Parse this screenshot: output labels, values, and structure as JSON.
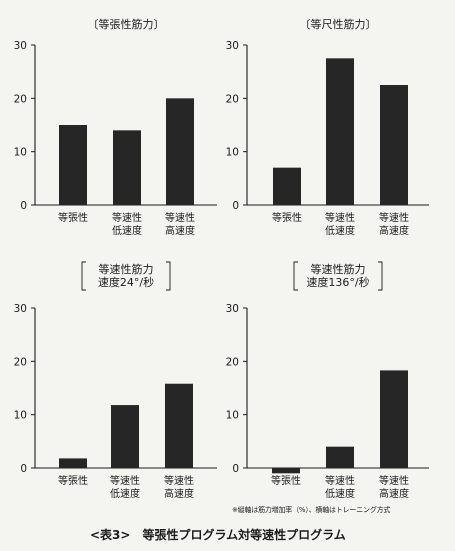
{
  "chart_data": [
    {
      "type": "bar",
      "title": "〔等張性筋力〕",
      "subtitle": "",
      "categories": [
        [
          "等張性"
        ],
        [
          "等速性",
          "低速度"
        ],
        [
          "等速性",
          "高速度"
        ]
      ],
      "values": [
        15,
        14,
        20
      ],
      "yticks": [
        0,
        10,
        20,
        30
      ],
      "ylim": [
        0,
        30
      ]
    },
    {
      "type": "bar",
      "title": "〔等尺性筋力〕",
      "subtitle": "",
      "categories": [
        [
          "等張性"
        ],
        [
          "等速性",
          "低速度"
        ],
        [
          "等速性",
          "高速度"
        ]
      ],
      "values": [
        7,
        27.5,
        22.5
      ],
      "yticks": [
        0,
        10,
        20,
        30
      ],
      "ylim": [
        0,
        30
      ]
    },
    {
      "type": "bar",
      "title": "等速性筋力",
      "subtitle": "速度24°/秒",
      "categories": [
        [
          "等張性"
        ],
        [
          "等速性",
          "低速度"
        ],
        [
          "等速性",
          "高速度"
        ]
      ],
      "values": [
        1.8,
        11.8,
        15.8
      ],
      "yticks": [
        0,
        10,
        20,
        30
      ],
      "ylim": [
        0,
        30
      ]
    },
    {
      "type": "bar",
      "title": "等速性筋力",
      "subtitle": "速度136°/秒",
      "categories": [
        [
          "等張性"
        ],
        [
          "等速性",
          "低速度"
        ],
        [
          "等速性",
          "高速度"
        ]
      ],
      "values": [
        -1,
        4,
        18.3
      ],
      "yticks": [
        0,
        10,
        20,
        30
      ],
      "ylim": [
        0,
        30
      ]
    }
  ],
  "footnote": "※縦軸は筋力増加率（%）、横軸はトレーニング方式",
  "caption": {
    "tag": "<表3>",
    "text": "等張性プログラム対等速性プログラム"
  },
  "colors": {
    "bar": "#262626",
    "axis": "#1c1c1c"
  }
}
